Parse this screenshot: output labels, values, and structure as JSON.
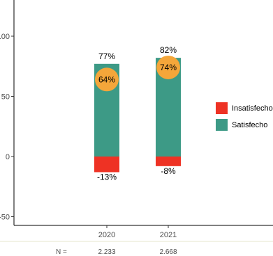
{
  "chart_data": {
    "type": "bar",
    "stacked": true,
    "categories": [
      "2020",
      "2021"
    ],
    "series": [
      {
        "name": "Insatisfecho",
        "values": [
          -13,
          -8
        ],
        "color": "#ee3224"
      },
      {
        "name": "Satisfecho",
        "values": [
          77,
          82
        ],
        "color": "#3d9a86"
      }
    ],
    "bar_top_labels": [
      "77%",
      "82%"
    ],
    "bar_bottom_labels": [
      "-13%",
      "-8%"
    ],
    "bubbles": [
      {
        "value": 64,
        "label": "64%"
      },
      {
        "value": 74,
        "label": "74%"
      }
    ],
    "bubble_color": "#f4a63a",
    "y_ticks": [
      {
        "value": 100,
        "label": "100"
      },
      {
        "value": 50,
        "label": "50"
      },
      {
        "value": 0,
        "label": "0"
      },
      {
        "value": -50,
        "label": "-50"
      }
    ],
    "ylim": [
      -58,
      120
    ],
    "grid": false,
    "legend_position": "right",
    "n_label": "N =",
    "n_values": [
      "2.233",
      "2.668"
    ]
  }
}
